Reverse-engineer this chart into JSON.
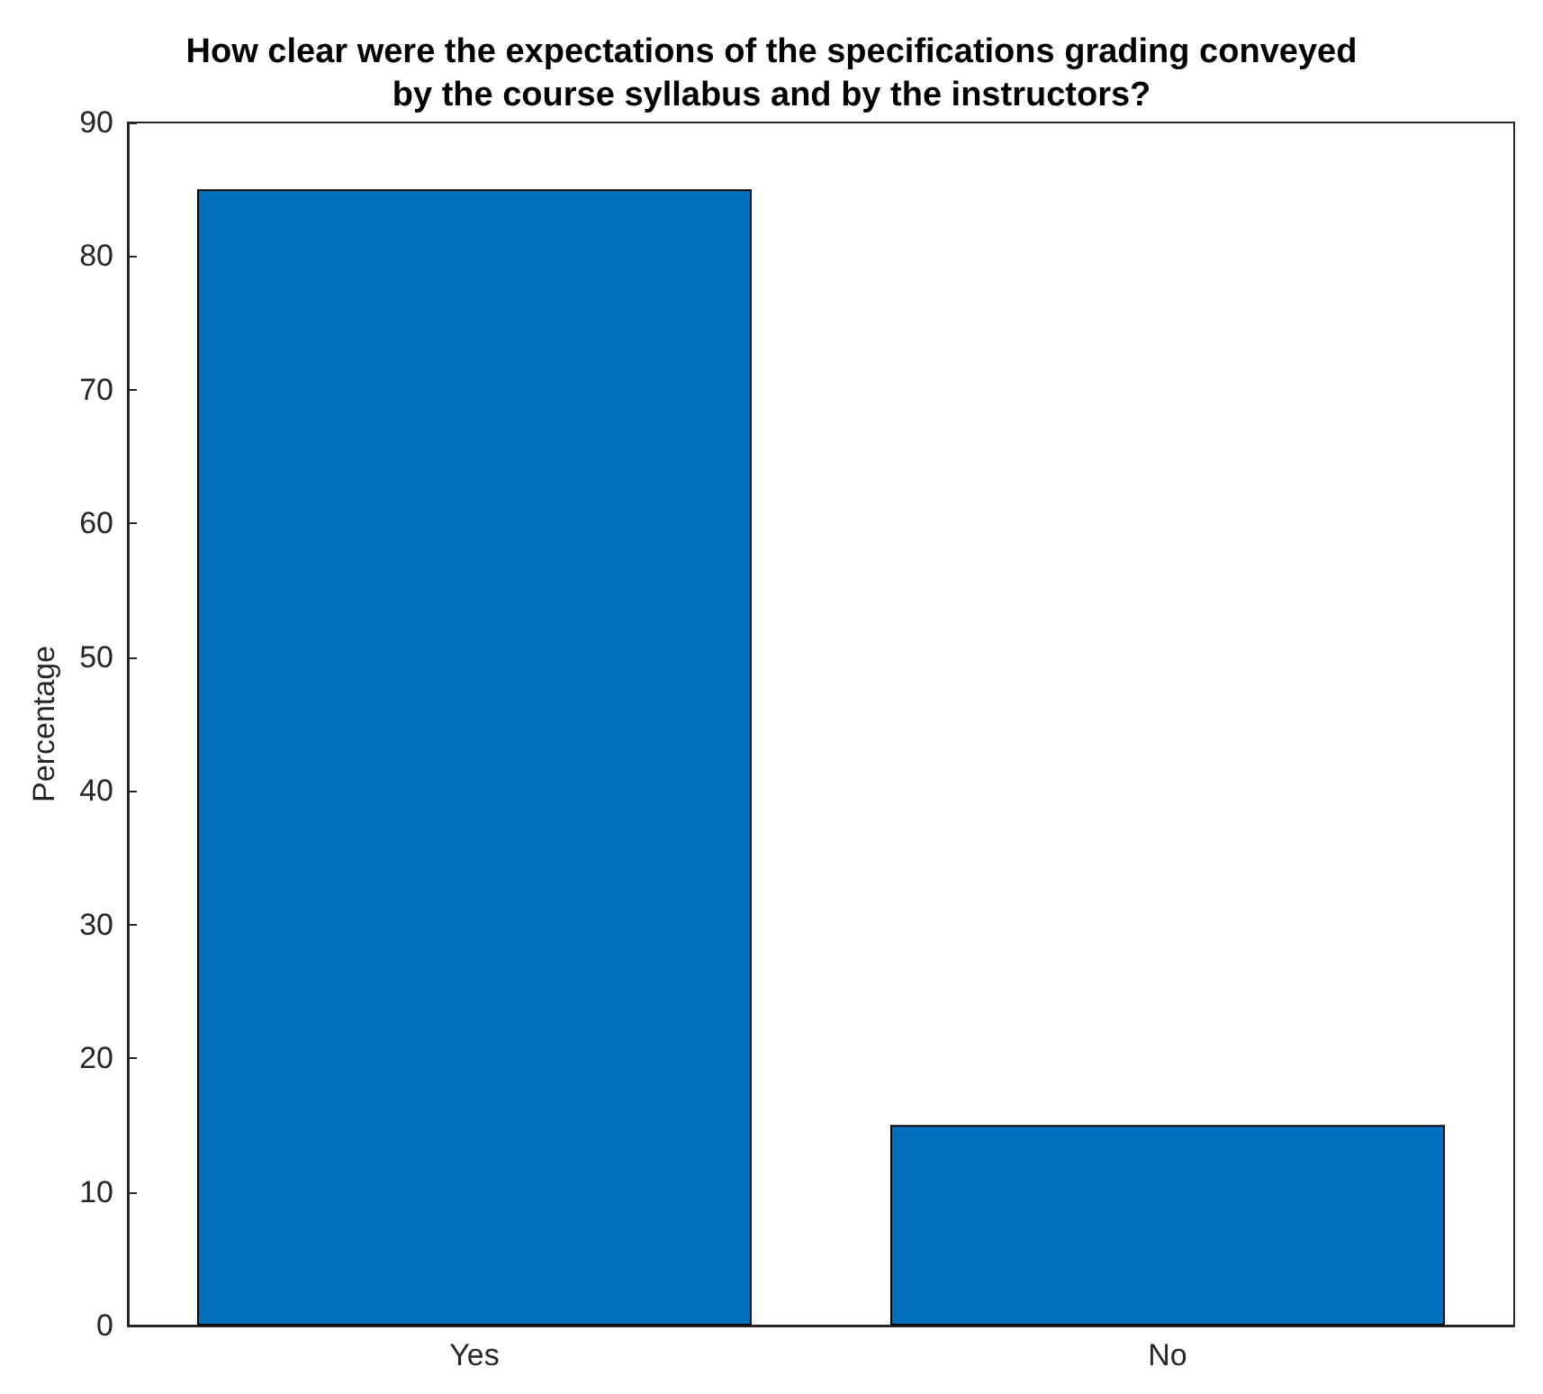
{
  "chart_data": {
    "type": "bar",
    "title": "How clear were the expectations of the specifications grading conveyed\nby the course syllabus and by the instructors?",
    "ylabel": "Percentage",
    "categories": [
      "Yes",
      "No"
    ],
    "values": [
      85,
      15
    ],
    "color": "#0072bd",
    "ylim": [
      0,
      90
    ],
    "yticks": [
      0,
      10,
      20,
      30,
      40,
      50,
      60,
      70,
      80,
      90
    ],
    "grid": false
  }
}
